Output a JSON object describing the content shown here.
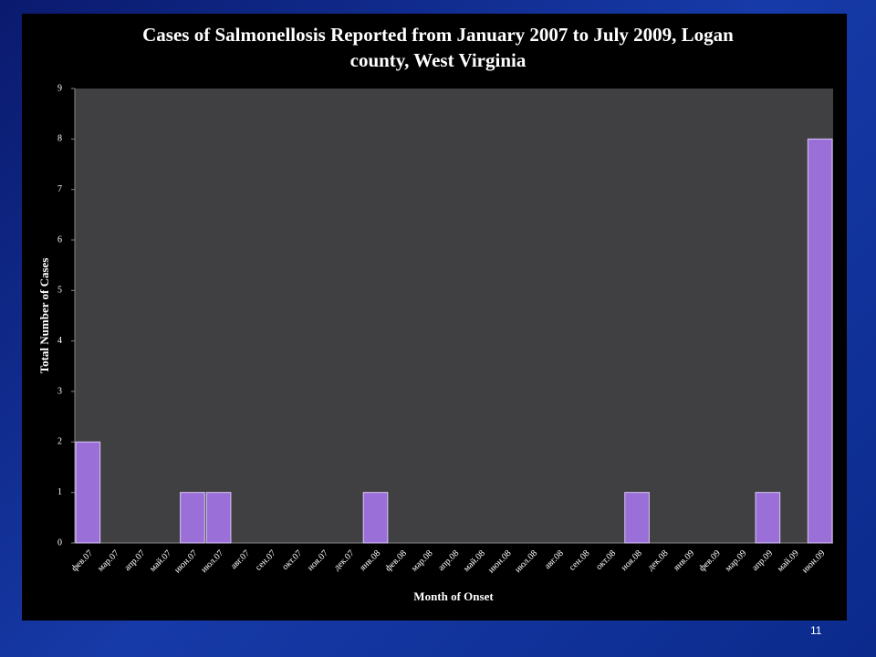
{
  "chart_data": {
    "type": "bar",
    "title": "Cases of Salmonellosis Reported from January 2007 to July 2009,  Logan county, West Virginia",
    "x_label": "Month of Onset",
    "y_label": "Total Number of Cases",
    "categories": [
      "фев.07",
      "мар.07",
      "апр.07",
      "май.07",
      "июн.07",
      "июл.07",
      "авг.07",
      "сен.07",
      "окт.07",
      "ноя.07",
      "дек.07",
      "янв.08",
      "фев.08",
      "мар.08",
      "апр.08",
      "май.08",
      "июн.08",
      "июл.08",
      "авг.08",
      "сен.08",
      "окт.08",
      "ноя.08",
      "дек.08",
      "янв.09",
      "фев.09",
      "мар.09",
      "апр.09",
      "май.09",
      "июн.09"
    ],
    "values": [
      2,
      0,
      0,
      0,
      1,
      1,
      0,
      0,
      0,
      0,
      0,
      1,
      0,
      0,
      0,
      0,
      0,
      0,
      0,
      0,
      0,
      1,
      0,
      0,
      0,
      0,
      1,
      0,
      8
    ],
    "color": "#9a6fd8",
    "ylim": [
      0,
      9
    ],
    "yticks": [
      0,
      1,
      2,
      3,
      4,
      5,
      6,
      7,
      8,
      9
    ]
  },
  "slide_number": "11"
}
